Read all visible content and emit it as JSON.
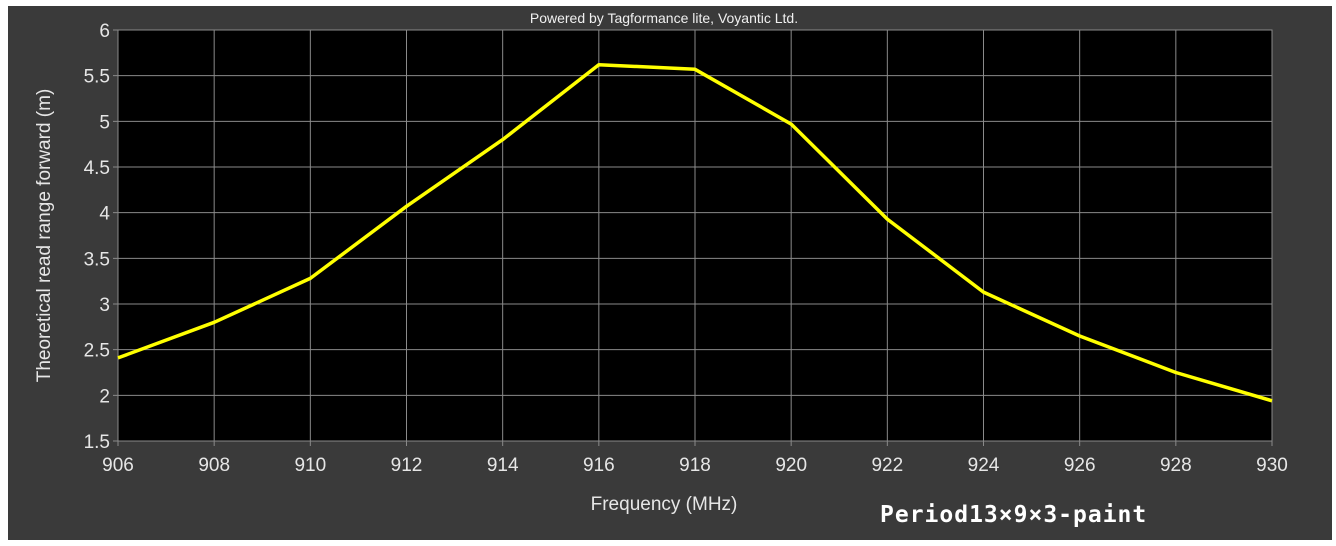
{
  "header": {
    "credit_text": "Powered by Tagformance lite, Voyantic Ltd."
  },
  "caption": "Period13×9×3-paint",
  "colors": {
    "background": "#3a3a3a",
    "plot_background": "#000000",
    "grid": "#8a8a8a",
    "series": "#ffff00",
    "text": "#e6e6e6"
  },
  "chart_data": {
    "type": "line",
    "title": "",
    "xlabel": "Frequency (MHz)",
    "ylabel": "Theoretical read range forward (m)",
    "xlim": [
      906,
      930
    ],
    "ylim": [
      1.5,
      6
    ],
    "xticks": [
      906,
      908,
      910,
      912,
      914,
      916,
      918,
      920,
      922,
      924,
      926,
      928,
      930
    ],
    "yticks": [
      1.5,
      2,
      2.5,
      3,
      3.5,
      4,
      4.5,
      5,
      5.5,
      6
    ],
    "xtick_labels": [
      "906",
      "908",
      "910",
      "912",
      "914",
      "916",
      "918",
      "920",
      "922",
      "924",
      "926",
      "928",
      "930"
    ],
    "ytick_labels": [
      "1.5",
      "2",
      "2.5",
      "3",
      "3.5",
      "4",
      "4.5",
      "5",
      "5.5",
      "6"
    ],
    "grid": true,
    "series": [
      {
        "x": [
          906,
          908,
          910,
          912,
          914,
          916,
          918,
          920,
          922,
          924,
          926,
          928,
          930
        ],
        "y": [
          2.41,
          2.8,
          3.28,
          4.07,
          4.8,
          5.62,
          5.57,
          4.97,
          3.93,
          3.13,
          2.65,
          2.25,
          1.94
        ]
      }
    ]
  }
}
